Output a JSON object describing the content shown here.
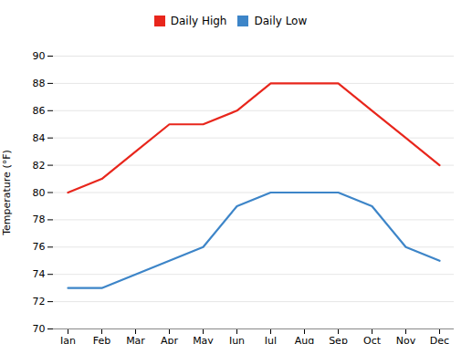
{
  "chart_data": {
    "type": "line",
    "ylabel": "Temperature (°F)",
    "categories": [
      "Jan",
      "Feb",
      "Mar",
      "Apr",
      "May",
      "Jun",
      "Jul",
      "Aug",
      "Sep",
      "Oct",
      "Nov",
      "Dec"
    ],
    "series": [
      {
        "name": "Daily High",
        "color": "#e8261c",
        "values": [
          80,
          81,
          83,
          85,
          85,
          86,
          88,
          88,
          88,
          86,
          84,
          82
        ]
      },
      {
        "name": "Daily Low",
        "color": "#3d85c8",
        "values": [
          73,
          73,
          74,
          75,
          76,
          79,
          80,
          80,
          80,
          79,
          76,
          75
        ]
      }
    ],
    "ylim": [
      70,
      90
    ],
    "yticks": [
      70,
      72,
      74,
      76,
      78,
      80,
      82,
      84,
      86,
      88,
      90
    ],
    "grid": true,
    "legend": "top"
  }
}
